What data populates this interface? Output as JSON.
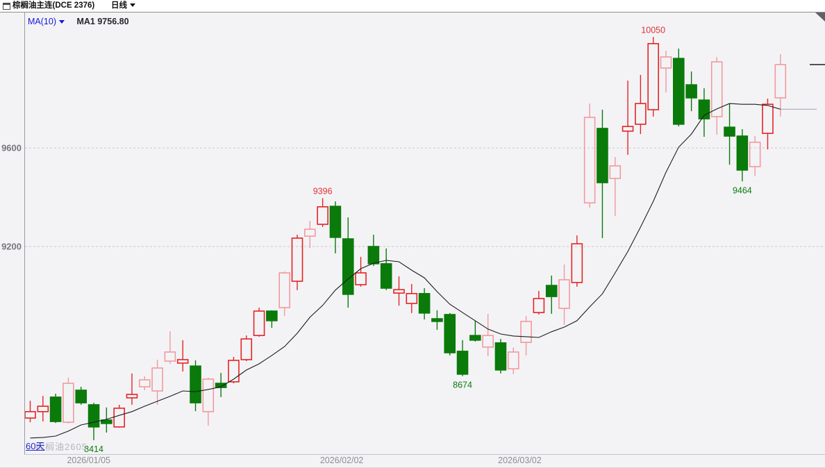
{
  "header": {
    "title": "棕榈油主连(DCE 2376)",
    "period_selector": "日线"
  },
  "legend": {
    "ma_selector_label": "MA(10)",
    "ma1_value_label": "MA1 9756.80"
  },
  "footer": {
    "range_label": "60天",
    "watermark_label": "棕榈油2605"
  },
  "colors": {
    "up_red": "#e62222",
    "up_pink": "#f2999c",
    "down_green": "#0a7a0a",
    "ma_line": "#1c1c1c",
    "ma_tail": "#a8a8ae",
    "grid": "#c9c9cf",
    "axis": "#9a9aa0",
    "annotation_red": "#e03232",
    "annotation_green": "#0a7a0a",
    "tick_text": "#77777d",
    "date_text": "#8c8c93",
    "background": "#f3f3f6"
  },
  "chart_data": {
    "type": "candlestick",
    "title": "棕榈油主连(DCE 2376) 日线",
    "visible_bars": 60,
    "legend_position": "top-left",
    "grid": "dashed-horizontal",
    "y_axis": {
      "ticks": [
        {
          "label": "9600",
          "price": 9600
        },
        {
          "label": "9200",
          "price": 9200
        }
      ],
      "approx_range": [
        8380,
        10150
      ]
    },
    "x_axis": {
      "labels": [
        {
          "text": "2026/01/05",
          "bar_index": 5.6
        },
        {
          "text": "2026/02/02",
          "bar_index": 25.5
        },
        {
          "text": "2026/03/02",
          "bar_index": 39.5
        }
      ]
    },
    "candle_fields": [
      "open",
      "high",
      "low",
      "close",
      "tone"
    ],
    "candles": [
      [
        8504,
        8574,
        8487,
        8530,
        "red"
      ],
      [
        8530,
        8594,
        8490,
        8552,
        "red"
      ],
      [
        8589,
        8603,
        8484,
        8490,
        "green"
      ],
      [
        8487,
        8668,
        8482,
        8645,
        "pink"
      ],
      [
        8617,
        8631,
        8558,
        8566,
        "green"
      ],
      [
        8558,
        8566,
        8414,
        8468,
        "green"
      ],
      [
        8496,
        8547,
        8445,
        8482,
        "green"
      ],
      [
        8468,
        8558,
        8465,
        8544,
        "red"
      ],
      [
        8586,
        8685,
        8558,
        8600,
        "red"
      ],
      [
        8631,
        8673,
        8617,
        8659,
        "pink"
      ],
      [
        8614,
        8741,
        8558,
        8707,
        "pink"
      ],
      [
        8735,
        8856,
        8724,
        8772,
        "pink"
      ],
      [
        8727,
        8820,
        8693,
        8741,
        "red"
      ],
      [
        8715,
        8738,
        8532,
        8566,
        "green"
      ],
      [
        8530,
        8668,
        8473,
        8662,
        "pink"
      ],
      [
        8645,
        8687,
        8589,
        8628,
        "green"
      ],
      [
        8651,
        8752,
        8645,
        8738,
        "red"
      ],
      [
        8741,
        8839,
        8735,
        8825,
        "red"
      ],
      [
        8839,
        8952,
        8834,
        8938,
        "red"
      ],
      [
        8938,
        8941,
        8870,
        8899,
        "green"
      ],
      [
        8952,
        9099,
        8918,
        9093,
        "pink"
      ],
      [
        9059,
        9248,
        9023,
        9234,
        "red"
      ],
      [
        9242,
        9304,
        9194,
        9270,
        "pink"
      ],
      [
        9290,
        9396,
        9279,
        9361,
        "red"
      ],
      [
        9363,
        9383,
        9172,
        9237,
        "green"
      ],
      [
        9231,
        9318,
        8952,
        9006,
        "green"
      ],
      [
        9045,
        9158,
        9037,
        9093,
        "red"
      ],
      [
        9200,
        9248,
        9121,
        9130,
        "green"
      ],
      [
        9130,
        9192,
        9023,
        9031,
        "green"
      ],
      [
        9011,
        9079,
        8960,
        9025,
        "red"
      ],
      [
        8969,
        9048,
        8930,
        9009,
        "red"
      ],
      [
        9009,
        9031,
        8904,
        8930,
        "green"
      ],
      [
        8907,
        8941,
        8862,
        8896,
        "green"
      ],
      [
        8924,
        8930,
        8758,
        8769,
        "green"
      ],
      [
        8775,
        8820,
        8674,
        8682,
        "green"
      ],
      [
        8839,
        8899,
        8814,
        8820,
        "green"
      ],
      [
        8792,
        8927,
        8755,
        8839,
        "pink"
      ],
      [
        8809,
        8825,
        8685,
        8699,
        "green"
      ],
      [
        8704,
        8790,
        8682,
        8772,
        "pink"
      ],
      [
        8811,
        8918,
        8758,
        8896,
        "pink"
      ],
      [
        8932,
        9020,
        8924,
        8989,
        "red"
      ],
      [
        9042,
        9082,
        8927,
        8997,
        "green"
      ],
      [
        8949,
        9127,
        8882,
        9065,
        "pink"
      ],
      [
        9054,
        9245,
        9037,
        9211,
        "red"
      ],
      [
        9377,
        9780,
        9358,
        9724,
        "pink"
      ],
      [
        9679,
        9755,
        9234,
        9459,
        "green"
      ],
      [
        9476,
        9563,
        9324,
        9527,
        "pink"
      ],
      [
        9668,
        9873,
        9572,
        9687,
        "red"
      ],
      [
        9696,
        9896,
        9656,
        9780,
        "red"
      ],
      [
        9755,
        10050,
        9727,
        10023,
        "red"
      ],
      [
        9924,
        9994,
        9825,
        9969,
        "pink"
      ],
      [
        9963,
        10003,
        9687,
        9696,
        "green"
      ],
      [
        9856,
        9910,
        9749,
        9803,
        "green"
      ],
      [
        9794,
        9842,
        9645,
        9718,
        "green"
      ],
      [
        9727,
        9969,
        9654,
        9949,
        "pink"
      ],
      [
        9684,
        9780,
        9532,
        9648,
        "green"
      ],
      [
        9648,
        9676,
        9464,
        9510,
        "green"
      ],
      [
        9524,
        9648,
        9485,
        9623,
        "pink"
      ],
      [
        9659,
        9800,
        9594,
        9777,
        "red"
      ],
      [
        9803,
        9980,
        9727,
        9938,
        "pink"
      ]
    ],
    "ma10": [
      8423,
      8425,
      8431,
      8451,
      8476,
      8487,
      8499,
      8515,
      8530,
      8552,
      8572,
      8592,
      8614,
      8611,
      8620,
      8631,
      8662,
      8699,
      8724,
      8758,
      8794,
      8848,
      8913,
      8961,
      9023,
      9068,
      9110,
      9132,
      9144,
      9138,
      9104,
      9073,
      9017,
      8966,
      8932,
      8899,
      8865,
      8845,
      8837,
      8834,
      8831,
      8854,
      8873,
      8899,
      8955,
      9008,
      9093,
      9180,
      9279,
      9383,
      9501,
      9603,
      9656,
      9732,
      9758,
      9780,
      9777,
      9777,
      9772,
      9756.8
    ],
    "annotations": [
      {
        "text": "10050",
        "bar_index": 50,
        "price": 10050,
        "placement": "above",
        "tone": "red"
      },
      {
        "text": "9396",
        "bar_index": 24,
        "price": 9396,
        "placement": "above",
        "tone": "red"
      },
      {
        "text": "8414",
        "bar_index": 6,
        "price": 8414,
        "placement": "below",
        "tone": "green"
      },
      {
        "text": "8674",
        "bar_index": 35,
        "price": 8674,
        "placement": "below",
        "tone": "green"
      },
      {
        "text": "9464",
        "bar_index": 57,
        "price": 9464,
        "placement": "below",
        "tone": "green"
      }
    ],
    "last_close_marker": 9938
  }
}
